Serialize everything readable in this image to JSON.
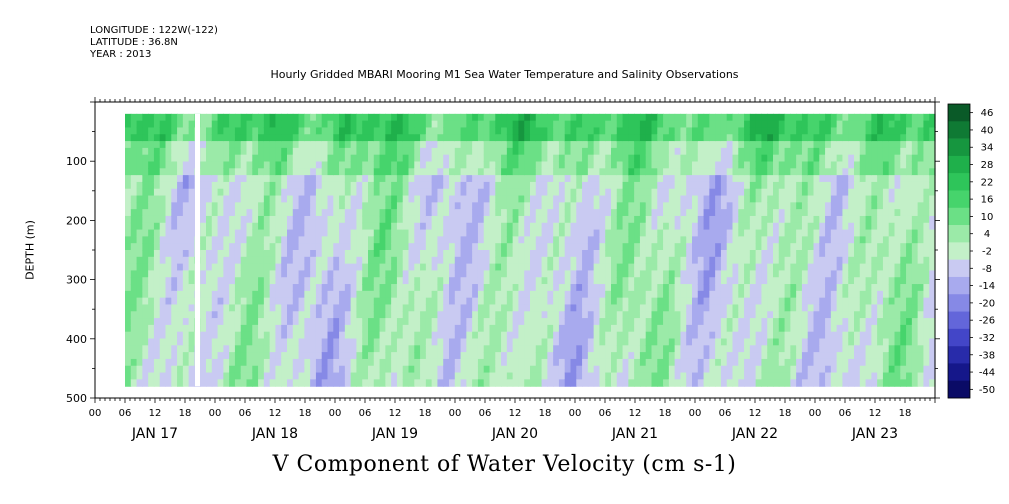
{
  "header": {
    "longitude": "LONGITUDE : 122W(-122)",
    "latitude": "LATITUDE : 36.8N",
    "year": "YEAR : 2013"
  },
  "chart_data": {
    "type": "heatmap",
    "title": "Hourly Gridded MBARI Mooring M1 Sea Water Temperature and Salinity Observations",
    "xlabel": "V Component of Water Velocity (cm s-1)",
    "ylabel": "DEPTH (m)",
    "ylim": [
      500,
      0
    ],
    "yticks": [
      100,
      200,
      300,
      400,
      500
    ],
    "x_hour_ticks": [
      "00",
      "06",
      "12",
      "18",
      "00",
      "06",
      "12",
      "18",
      "00",
      "06",
      "12",
      "18",
      "00",
      "06",
      "12",
      "18",
      "00",
      "06",
      "12",
      "18",
      "00",
      "06",
      "12",
      "18",
      "00",
      "06",
      "12",
      "18"
    ],
    "x_day_labels": [
      "JAN 17",
      "JAN 18",
      "JAN 19",
      "JAN 20",
      "JAN 21",
      "JAN 22",
      "JAN 23"
    ],
    "colorbar": {
      "levels": [
        "46",
        "40",
        "34",
        "28",
        "22",
        "16",
        "10",
        "4",
        "-2",
        "-8",
        "-14",
        "-20",
        "-26",
        "-32",
        "-38",
        "-44",
        "-50"
      ],
      "colors": [
        "#0a5a28",
        "#0f7a34",
        "#16963f",
        "#1fb04b",
        "#2ec55a",
        "#46d46c",
        "#6be086",
        "#9beaa8",
        "#c3f0c8",
        "#c9caf2",
        "#a8aaee",
        "#8689e6",
        "#6366da",
        "#4346c8",
        "#282baa",
        "#15178a",
        "#0a0b66"
      ]
    },
    "depth_top_m": 20,
    "depth_bottom_m": 480,
    "time_start_hours": 6,
    "time_end_hours": 168,
    "gap_hours": [
      20,
      21
    ]
  }
}
